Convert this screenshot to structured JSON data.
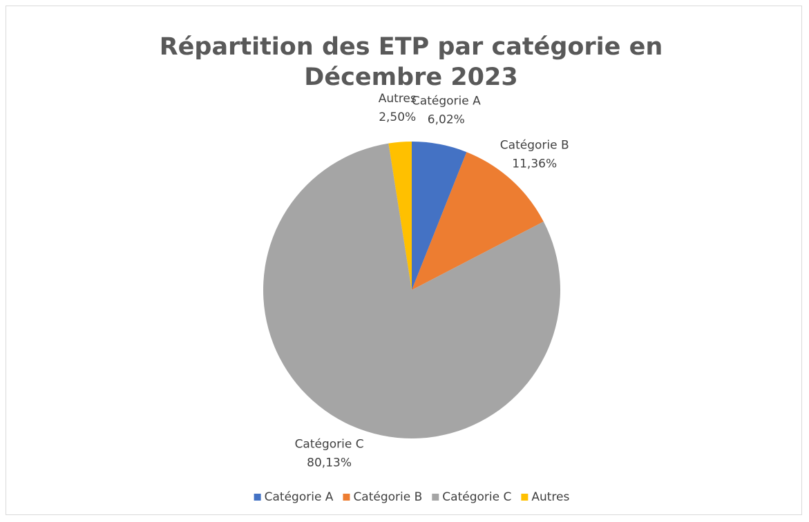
{
  "chart_data": {
    "type": "pie",
    "title": "Répartition des ETP par catégorie en Décembre 2023",
    "categories": [
      "Catégorie A",
      "Catégorie B",
      "Catégorie C",
      "Autres"
    ],
    "values": [
      6.02,
      11.36,
      80.13,
      2.5
    ],
    "value_labels": [
      "6,02%",
      "11,36%",
      "80,13%",
      "2,50%"
    ],
    "colors": [
      "#4472c4",
      "#ed7d31",
      "#a5a5a5",
      "#ffc000"
    ],
    "legend": "bottom"
  }
}
